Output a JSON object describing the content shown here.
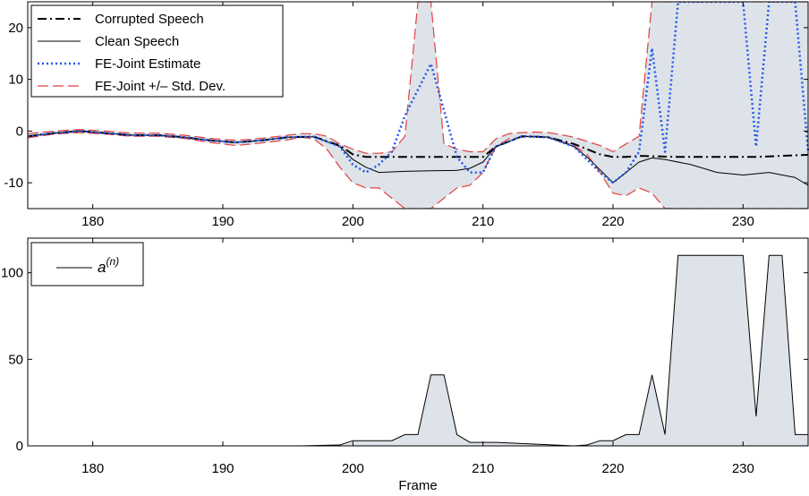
{
  "chart_data": [
    {
      "type": "line",
      "xlim": [
        175,
        235
      ],
      "ylim": [
        -15,
        25
      ],
      "xticks": [
        180,
        190,
        200,
        210,
        220,
        230
      ],
      "yticks": [
        -10,
        0,
        10,
        20
      ],
      "ytick_labels": [
        "-10",
        "0",
        "10",
        "20"
      ],
      "grid": false,
      "legend_position": "top-left",
      "band": {
        "name": "FE-Joint +/– Std. Dev.",
        "color": "#dde3e8",
        "edge_color": "#e04040",
        "x": [
          175,
          177,
          179,
          181,
          183,
          185,
          187,
          189,
          191,
          193,
          195,
          196,
          197,
          198,
          199,
          200,
          201,
          202,
          203,
          204,
          205,
          206,
          207,
          208,
          209,
          210,
          211,
          212,
          213,
          214,
          215,
          216,
          217,
          218,
          219,
          220,
          221,
          222,
          223,
          224,
          225,
          226,
          227,
          228,
          229,
          230,
          231,
          232,
          233,
          234,
          235
        ],
        "upper": [
          -0.5,
          0,
          0.3,
          0,
          -0.4,
          -0.4,
          -0.8,
          -1.4,
          -1.8,
          -1.4,
          -0.8,
          -0.5,
          -0.5,
          -1,
          -2.5,
          -3.5,
          -4.3,
          -4.3,
          -4,
          -1,
          25,
          25,
          -2.5,
          -3.5,
          -4,
          -4,
          -1.5,
          -0.5,
          -0.3,
          -0.2,
          -0.3,
          -0.7,
          -1.2,
          -2,
          -2.8,
          -4,
          -2.5,
          -1,
          25,
          25,
          25,
          25,
          25,
          25,
          25,
          25,
          25,
          25,
          25,
          25,
          25
        ],
        "lower": [
          -1.3,
          -0.6,
          -0.3,
          -0.6,
          -1,
          -1,
          -1.4,
          -2.2,
          -2.8,
          -2.3,
          -1.7,
          -1.2,
          -1.5,
          -3.5,
          -7,
          -10,
          -11,
          -11,
          -13,
          -15,
          -15,
          -15,
          -13,
          -11,
          -10.5,
          -8,
          -3,
          -1.5,
          -1.2,
          -1,
          -1.2,
          -2,
          -2.8,
          -4.5,
          -8,
          -12,
          -12.5,
          -11,
          -12,
          -15,
          -15,
          -15,
          -15,
          -15,
          -15,
          -15,
          -15,
          -15,
          -15,
          -15,
          -15
        ]
      },
      "series": [
        {
          "name": "Corrupted Speech",
          "style": "dash-dot",
          "color": "#000000",
          "x": [
            175,
            177,
            179,
            181,
            183,
            185,
            187,
            189,
            191,
            193,
            195,
            197,
            199,
            200,
            201,
            202,
            203,
            204,
            205,
            206,
            207,
            208,
            209,
            210,
            211,
            213,
            215,
            217,
            219,
            220,
            221,
            222,
            225,
            228,
            231,
            235
          ],
          "y": [
            -1,
            -0.4,
            0,
            -0.4,
            -0.8,
            -0.8,
            -1.2,
            -1.8,
            -2.2,
            -1.8,
            -1.2,
            -1.1,
            -2.8,
            -4.5,
            -5,
            -5,
            -5,
            -5,
            -5,
            -5,
            -5,
            -5,
            -5,
            -5,
            -3,
            -1,
            -1.2,
            -2.5,
            -4.5,
            -5,
            -5,
            -4.8,
            -5,
            -5,
            -5,
            -4.6
          ]
        },
        {
          "name": "Clean Speech",
          "style": "solid",
          "color": "#000000",
          "x": [
            175,
            177,
            179,
            181,
            183,
            185,
            187,
            189,
            191,
            193,
            195,
            197,
            199,
            200,
            201,
            202,
            204,
            206,
            208,
            209,
            210,
            211,
            213,
            215,
            217,
            218,
            219,
            220,
            221,
            222,
            223,
            224,
            226,
            228,
            230,
            232,
            234,
            235
          ],
          "y": [
            -1,
            -0.4,
            0,
            -0.4,
            -0.8,
            -0.8,
            -1.2,
            -1.8,
            -2.2,
            -1.8,
            -1.2,
            -1.1,
            -3,
            -5.5,
            -7,
            -8,
            -7.8,
            -7.7,
            -7.6,
            -7.2,
            -6,
            -3,
            -1,
            -1.2,
            -3,
            -5,
            -7.5,
            -10,
            -8,
            -6,
            -5.2,
            -5.5,
            -6.5,
            -8,
            -8.5,
            -8,
            -9,
            -10.5
          ]
        },
        {
          "name": "FE-Joint Estimate",
          "style": "dotted",
          "color": "#2255ee",
          "x": [
            175,
            177,
            179,
            181,
            183,
            185,
            187,
            189,
            191,
            193,
            195,
            197,
            199,
            200,
            201,
            202,
            203,
            204,
            205,
            206,
            207,
            208,
            209,
            210,
            211,
            213,
            215,
            217,
            219,
            220,
            221,
            222,
            223,
            224,
            225,
            226,
            227,
            228,
            229,
            230,
            231,
            232,
            233,
            234,
            235
          ],
          "y": [
            -1,
            -0.4,
            0,
            -0.4,
            -0.8,
            -0.8,
            -1.2,
            -1.8,
            -2.2,
            -1.8,
            -1.2,
            -1.1,
            -3,
            -6.5,
            -8,
            -6.5,
            -4,
            3,
            8,
            13,
            4,
            -5,
            -8,
            -8,
            -3,
            -1,
            -1.2,
            -3,
            -8,
            -10,
            -8,
            -4,
            16,
            -4,
            25,
            25,
            25,
            25,
            25,
            25,
            -3,
            25,
            25,
            25,
            -4
          ]
        }
      ]
    },
    {
      "type": "area",
      "xlim": [
        175,
        235
      ],
      "ylim": [
        0,
        120
      ],
      "xticks": [
        180,
        190,
        200,
        210,
        220,
        230
      ],
      "xtick_labels": [
        "180",
        "190",
        "200",
        "210",
        "220",
        "230"
      ],
      "yticks": [
        0,
        50,
        100
      ],
      "xlabel": "Frame",
      "legend_position": "top-left",
      "series": [
        {
          "name": "a",
          "name_superscript": "(n)",
          "color": "#000000",
          "fill": "#dde3e8",
          "x": [
            175,
            196,
            199,
            200,
            202,
            203,
            204,
            205,
            206,
            207,
            208,
            209,
            210,
            211,
            217,
            218,
            219,
            220,
            221,
            222,
            223,
            224,
            225,
            229,
            230,
            231,
            232,
            233,
            234,
            235
          ],
          "y": [
            0,
            0,
            0.5,
            3,
            3,
            3,
            6.5,
            6.5,
            41,
            41,
            6.5,
            2,
            2,
            2,
            0,
            0.5,
            3,
            3,
            6.5,
            6.5,
            41,
            6.5,
            110,
            110,
            110,
            17,
            110,
            110,
            6.5,
            6.5
          ]
        }
      ]
    }
  ]
}
